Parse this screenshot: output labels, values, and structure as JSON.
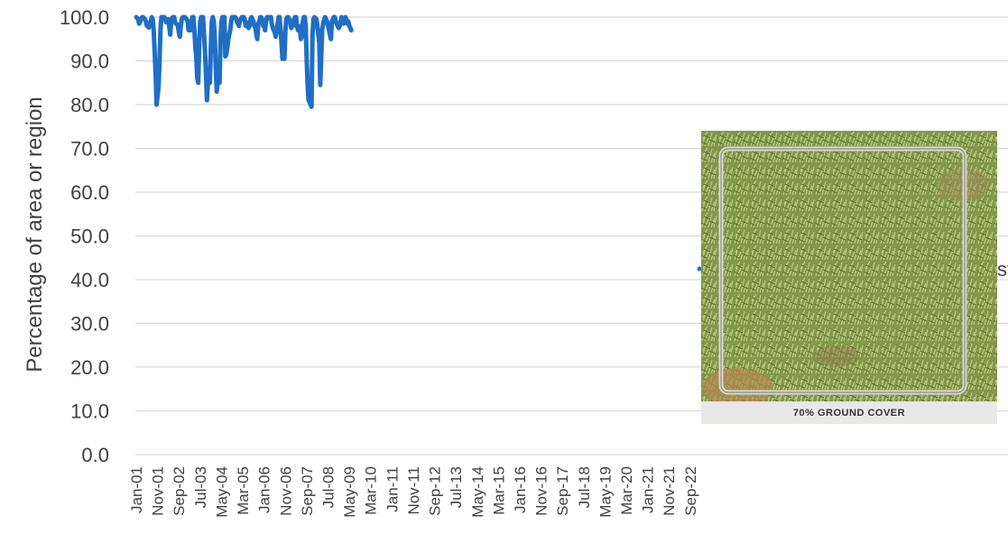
{
  "chart_data": {
    "type": "line",
    "ylabel": "Percentage of area or region",
    "xlabel": "",
    "ylim": [
      0,
      100
    ],
    "yticks": [
      "0.0",
      "10.0",
      "20.0",
      "30.0",
      "40.0",
      "50.0",
      "60.0",
      "70.0",
      "80.0",
      "90.0",
      "100.0"
    ],
    "xticks": [
      "Jan-01",
      "Nov-01",
      "Sep-02",
      "Jul-03",
      "May-04",
      "Mar-05",
      "Jan-06",
      "Nov-06",
      "Sep-07",
      "Jul-08",
      "May-09",
      "Mar-10",
      "Jan-11",
      "Nov-11",
      "Sep-12",
      "Jul-13",
      "May-14",
      "Mar-15",
      "Jan-16",
      "Nov-16",
      "Sep-17",
      "Jul-18",
      "May-19",
      "Mar-20",
      "Jan-21",
      "Nov-21",
      "Sep-22"
    ],
    "grid": true,
    "legend_position": "right",
    "series": [
      {
        "color": "#1f6fc5",
        "x_start": "Jan-01",
        "x_interval_months": 1,
        "values": [
          100,
          99.8,
          99.5,
          98.5,
          99,
          99.6,
          100,
          100,
          99.8,
          99.5,
          99,
          98,
          98.2,
          97.6,
          98.4,
          99.2,
          100,
          99.5,
          97,
          92,
          87,
          80,
          82,
          84,
          90,
          97,
          100,
          100,
          100,
          100,
          99.5,
          98.8,
          99,
          99.5,
          98,
          96,
          98.5,
          99.8,
          100,
          100,
          99,
          98.5,
          98.4,
          98,
          96.5,
          95.5,
          98,
          99.5,
          100,
          100,
          100,
          99.8,
          99.5,
          99.2,
          97,
          98.5,
          97,
          99,
          100,
          100,
          97,
          93,
          91,
          86,
          85,
          94,
          99,
          100,
          100,
          100,
          96,
          92,
          87,
          81,
          85,
          86,
          85,
          93,
          99,
          100,
          99,
          96,
          89,
          83,
          85,
          87,
          85,
          95,
          99,
          100,
          100,
          100,
          91,
          91.5,
          93,
          95,
          96,
          97,
          99,
          100,
          100,
          100,
          100,
          99.8,
          99,
          98.5,
          98,
          99,
          99.5,
          100,
          100,
          100,
          99.5,
          98,
          98.8,
          98,
          97.5,
          98,
          99.5,
          100,
          99.5,
          99,
          98,
          97.5,
          96,
          95,
          98.5,
          99,
          100,
          100,
          99.5,
          98,
          99,
          97,
          99,
          100,
          99.8,
          100,
          100,
          100,
          98.5,
          97.5,
          97,
          96.5,
          95.5,
          97,
          98.5,
          100,
          100,
          97,
          94,
          90.5,
          93.5,
          90.5,
          97,
          99.5,
          100,
          100,
          99.5,
          99,
          97.5,
          98.5,
          98,
          99.5,
          100,
          100,
          98,
          97,
          98,
          97,
          95,
          95.5,
          99,
          100,
          100,
          98,
          90,
          84,
          81,
          80.5,
          80,
          79.5,
          96,
          99.5,
          100,
          99.8,
          99.5,
          98,
          96,
          94,
          84.5,
          91,
          97,
          98.5,
          99.5,
          100,
          99.5,
          99,
          98,
          97,
          96,
          95,
          99,
          99.5,
          100,
          100,
          99,
          98.5,
          98,
          97.5,
          98,
          99,
          100,
          99.5,
          98.5,
          99.5,
          100,
          99.5,
          98.5,
          99,
          98,
          97.5,
          97
        ]
      }
    ],
    "legend": [
      {
        "marker_color": "#1f6fc5",
        "label": "st"
      }
    ]
  },
  "photo": {
    "caption": "70% GROUND COVER"
  }
}
